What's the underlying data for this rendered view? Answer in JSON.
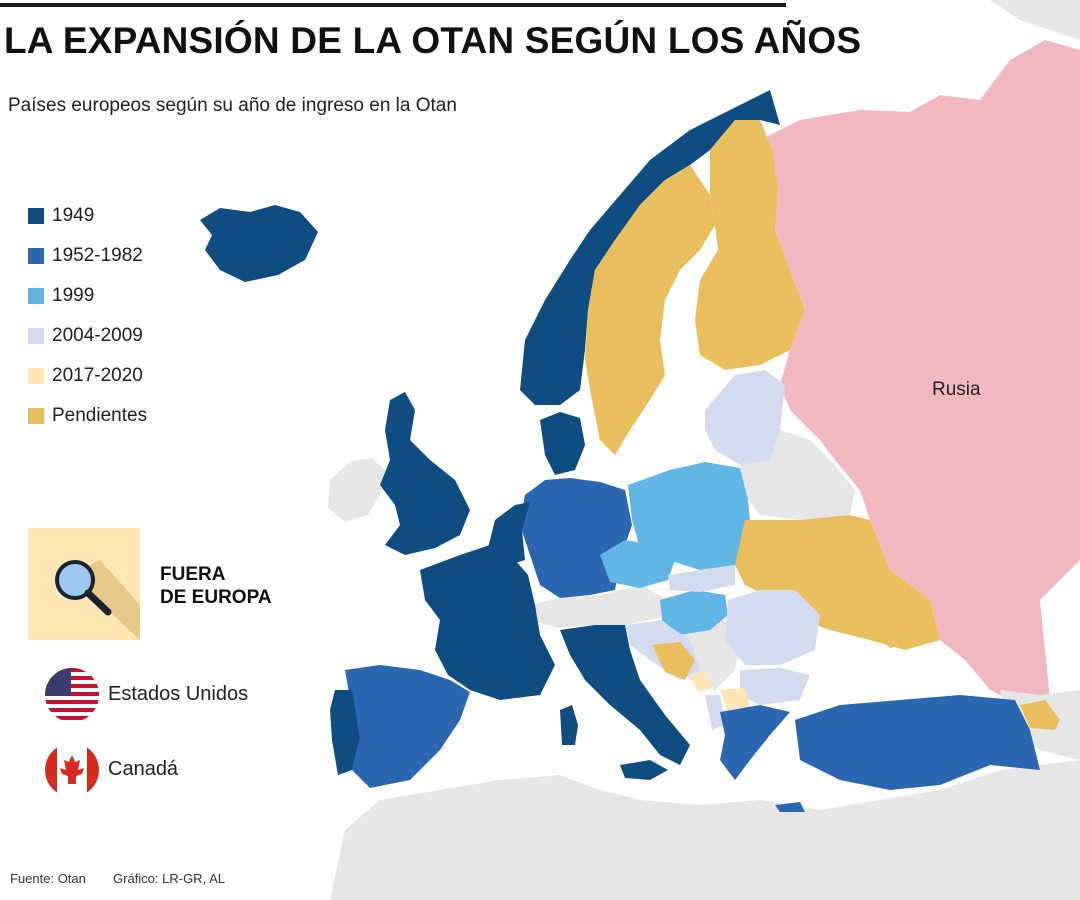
{
  "title": "LA EXPANSIÓN DE LA OTAN SEGÚN LOS AÑOS",
  "subtitle": "Países europeos según su año de ingreso en la Otan",
  "legend": [
    {
      "label": "1949",
      "color": "#0f4c81"
    },
    {
      "label": "1952-1982",
      "color": "#2b66b1"
    },
    {
      "label": "1999",
      "color": "#62b6e6"
    },
    {
      "label": "2004-2009",
      "color": "#d3dcef"
    },
    {
      "label": "2017-2020",
      "color": "#fde6b3"
    },
    {
      "label": "Pendientes",
      "color": "#e8bf5c"
    }
  ],
  "outside_europe": {
    "label_line1": "FUERA",
    "label_line2": "DE EUROPA",
    "icon": "magnifier-icon",
    "countries": [
      {
        "name": "Estados Unidos",
        "icon": "usa-flag-icon"
      },
      {
        "name": "Canadá",
        "icon": "canada-flag-icon"
      }
    ]
  },
  "map": {
    "russia_label": "Rusia",
    "colors": {
      "non_member": "#e6e6e6",
      "russia": "#f2b8bf",
      "sea": "#ffffff"
    }
  },
  "footer": {
    "source": "Fuente: Otan",
    "credit": "Gráfico: LR-GR, AL"
  }
}
